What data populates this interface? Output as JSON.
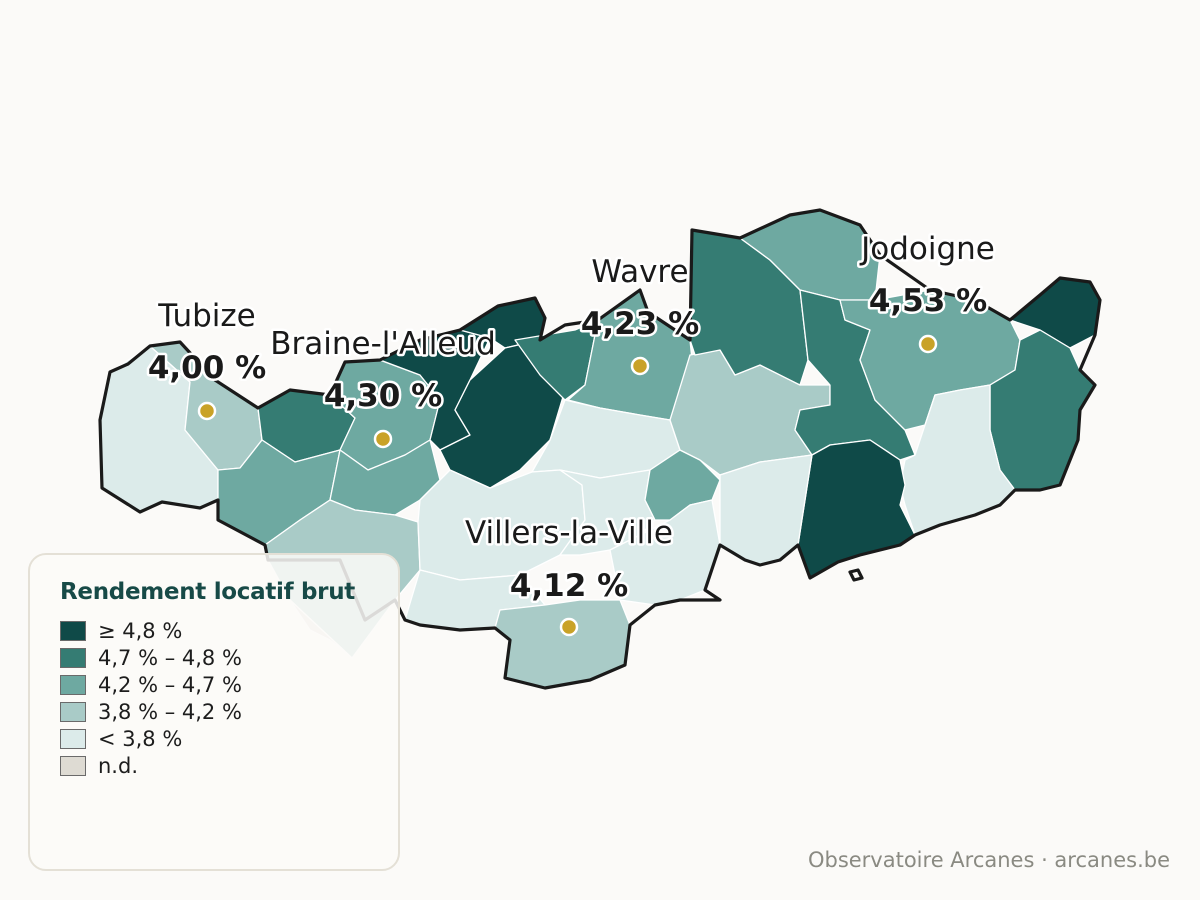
{
  "legend": {
    "title": "Rendement locatif brut",
    "items": [
      {
        "label": "≥ 4,8 %",
        "color": "#0f4a48"
      },
      {
        "label": "4,7 % – 4,8 %",
        "color": "#357c73"
      },
      {
        "label": "4,2 % – 4,7 %",
        "color": "#6ea9a1"
      },
      {
        "label": "3,8 % – 4,2 %",
        "color": "#a9cbc7"
      },
      {
        "label": "< 3,8 %",
        "color": "#dcebea"
      },
      {
        "label": "n.d.",
        "color": "#dedbd3"
      }
    ]
  },
  "cities": [
    {
      "name": "Tubize",
      "value": "4,00 %"
    },
    {
      "name": "Braine-l'Alleud",
      "value": "4,30 %"
    },
    {
      "name": "Wavre",
      "value": "4,23 %"
    },
    {
      "name": "Jodoigne",
      "value": "4,53 %"
    },
    {
      "name": "Villers-la-Ville",
      "value": "4,12 %"
    }
  ],
  "source": "Observatoire Arcanes · arcanes.be",
  "colors": {
    "dark": "#0f4a48",
    "mid_dark": "#357c73",
    "mid": "#6ea9a1",
    "light": "#a9cbc7",
    "lightest": "#dcebea",
    "no_data": "#dedbd3",
    "marker": "#c9a227"
  }
}
